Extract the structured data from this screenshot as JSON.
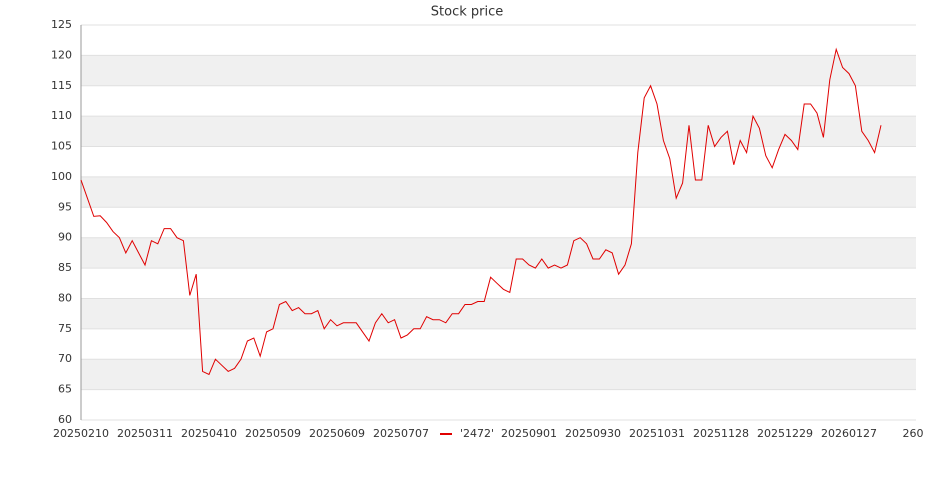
{
  "chart_data": {
    "type": "line",
    "title": "Stock price",
    "categories": [
      "20250210",
      null,
      null,
      null,
      null,
      null,
      null,
      null,
      null,
      null,
      "20250311",
      null,
      null,
      null,
      null,
      null,
      null,
      null,
      null,
      null,
      "20250410",
      null,
      null,
      null,
      null,
      null,
      null,
      null,
      null,
      null,
      "20250509",
      null,
      null,
      null,
      null,
      null,
      null,
      null,
      null,
      null,
      "20250609",
      null,
      null,
      null,
      null,
      null,
      null,
      null,
      null,
      null,
      "20250707",
      null,
      null,
      null,
      null,
      null,
      null,
      null,
      null,
      null,
      null,
      null,
      null,
      null,
      null,
      null,
      null,
      null,
      null,
      null,
      "20250901",
      null,
      null,
      null,
      null,
      null,
      null,
      null,
      null,
      null,
      "20250930",
      null,
      null,
      null,
      null,
      null,
      null,
      null,
      null,
      null,
      "20251031",
      null,
      null,
      null,
      null,
      null,
      null,
      null,
      null,
      null,
      "20251128",
      null,
      null,
      null,
      null,
      null,
      null,
      null,
      null,
      null,
      "20251229",
      null,
      null,
      null,
      null,
      null,
      null,
      null,
      null,
      null,
      "20260127",
      null,
      null,
      null,
      null,
      null,
      null,
      null,
      null,
      null,
      "260"
    ],
    "series": [
      {
        "name": "'2472'",
        "color": "#e00000",
        "values": [
          99.5,
          96.5,
          93.5,
          93.6,
          92.5,
          91,
          90,
          87.5,
          89.5,
          87.5,
          85.5,
          89.5,
          89,
          91.5,
          91.5,
          90,
          89.5,
          80.5,
          84,
          68,
          67.5,
          70,
          69,
          68,
          68.5,
          70,
          73,
          73.5,
          70.5,
          74.5,
          75,
          79,
          79.5,
          78,
          78.5,
          77.5,
          77.5,
          78,
          75,
          76.5,
          75.5,
          76,
          76,
          76,
          74.5,
          73,
          76,
          77.5,
          76,
          76.5,
          73.5,
          74,
          75,
          75,
          77,
          76.5,
          76.5,
          76,
          77.5,
          77.5,
          79,
          79,
          79.5,
          79.5,
          83.5,
          82.5,
          81.5,
          81,
          86.5,
          86.5,
          85.5,
          85,
          86.5,
          85,
          85.5,
          85,
          85.5,
          89.5,
          90,
          89,
          86.5,
          86.5,
          88,
          87.5,
          84,
          85.5,
          89,
          104,
          113,
          115,
          112,
          106,
          103,
          96.5,
          99,
          108.5,
          99.5,
          99.5,
          108.5,
          105,
          106.5,
          107.5,
          102,
          106,
          104,
          110,
          108,
          103.5,
          101.5,
          104.5,
          107,
          106,
          104.5,
          112,
          112,
          110.5,
          106.5,
          116,
          121,
          118,
          117,
          115,
          107.5,
          106,
          104,
          108.5,
          null,
          null,
          null,
          null,
          null
        ]
      }
    ],
    "ylim": [
      60,
      125
    ],
    "yticks": [
      60,
      65,
      70,
      75,
      80,
      85,
      90,
      95,
      100,
      105,
      110,
      115,
      120,
      125
    ],
    "grid": true,
    "legend": "bottom"
  }
}
